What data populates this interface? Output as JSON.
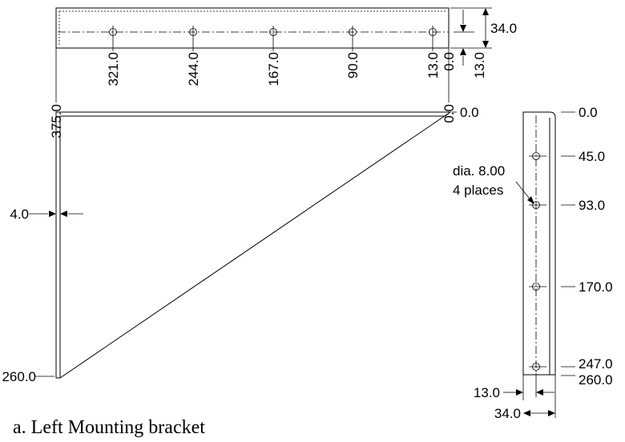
{
  "top_view": {
    "labels": [
      "321.0",
      "244.0",
      "167.0",
      "90.0",
      "13.0",
      "0.0"
    ],
    "dim_width": "34.0",
    "dim_offset": "13.0",
    "dim_total": "375.0",
    "dim_zero": "0.0"
  },
  "front_view": {
    "dim_top": "0.0",
    "dim_bottom": "260.0",
    "dim_thickness": "4.0"
  },
  "side_view": {
    "dim_top": "0.0",
    "hole_positions": [
      "45.0",
      "93.0",
      "170.0",
      "247.0"
    ],
    "dim_bottom": "260.0",
    "hole_callout": [
      "dia. 8.00",
      "4 places"
    ],
    "dim_offset": "13.0",
    "dim_width": "34.0"
  },
  "caption": "a. Left Mounting bracket"
}
